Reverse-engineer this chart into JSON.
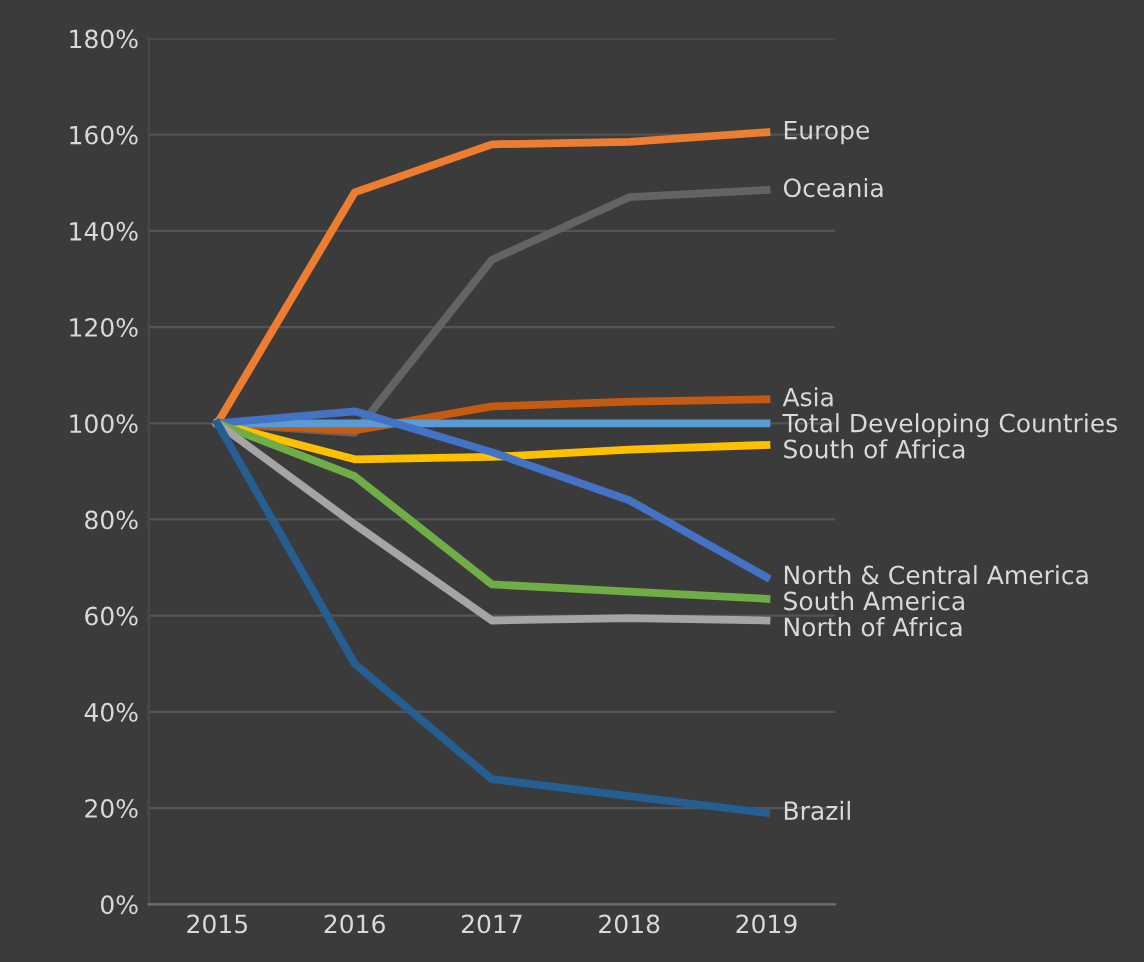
{
  "chart_data": {
    "type": "line",
    "categories": [
      "2015",
      "2016",
      "2017",
      "2018",
      "2019"
    ],
    "series": [
      {
        "name": "Europe",
        "color": "#ed7d31",
        "values": [
          100,
          148,
          158,
          158.5,
          160.5
        ]
      },
      {
        "name": "Oceania",
        "color": "#636363",
        "values": [
          100,
          98,
          134,
          147,
          148.5
        ]
      },
      {
        "name": "Asia",
        "color": "#c55a11",
        "values": [
          100,
          98.5,
          103.5,
          104.5,
          105
        ]
      },
      {
        "name": "Total Developing Countries",
        "color": "#5b9bd5",
        "values": [
          100,
          100,
          100,
          100,
          100
        ]
      },
      {
        "name": "South of Africa",
        "color": "#ffc000",
        "values": [
          100,
          92.5,
          93,
          94.5,
          95.5
        ]
      },
      {
        "name": "North & Central America",
        "color": "#4472c4",
        "values": [
          100,
          102.5,
          94,
          84,
          68
        ]
      },
      {
        "name": "South America",
        "color": "#70ad47",
        "values": [
          100,
          89,
          66.5,
          65,
          63.5
        ]
      },
      {
        "name": "North of Africa",
        "color": "#a5a5a5",
        "values": [
          100,
          79,
          59,
          59.5,
          59
        ]
      },
      {
        "name": "Brazil",
        "color": "#255e91",
        "values": [
          100,
          50,
          26,
          22.5,
          19
        ]
      }
    ],
    "ylim": [
      0,
      180
    ],
    "yticks": [
      {
        "value": 0,
        "label": "0%"
      },
      {
        "value": 20,
        "label": "20%"
      },
      {
        "value": 40,
        "label": "40%"
      },
      {
        "value": 60,
        "label": "60%"
      },
      {
        "value": 80,
        "label": "80%"
      },
      {
        "value": 100,
        "label": "100%"
      },
      {
        "value": 120,
        "label": "120%"
      },
      {
        "value": 140,
        "label": "140%"
      },
      {
        "value": 160,
        "label": "160%"
      },
      {
        "value": 180,
        "label": "180%"
      }
    ],
    "grid": "y",
    "legend": false,
    "marker": "none",
    "line_style": "solid"
  }
}
